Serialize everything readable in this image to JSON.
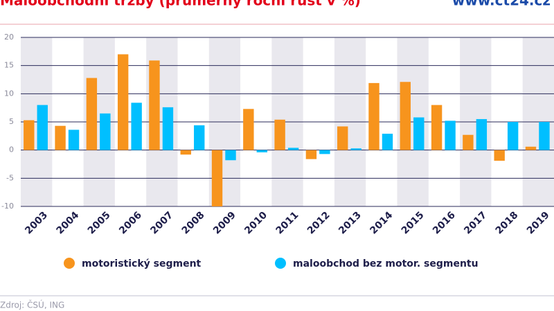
{
  "chart_data": {
    "type": "bar",
    "title": "Maloobchodní tržby (průměrný roční růst v %)",
    "website": "www.ct24.cz",
    "source": "Zdroj: ČSÚ, ING",
    "categories": [
      "2003",
      "2004",
      "2005",
      "2006",
      "2007",
      "2008",
      "2009",
      "2010",
      "2011",
      "2012",
      "2013",
      "2014",
      "2015",
      "2016",
      "2017",
      "2018",
      "2019"
    ],
    "series": [
      {
        "name": "motoristický segment",
        "color": "#f7941d",
        "values": [
          5.3,
          4.3,
          12.8,
          17,
          15.9,
          -0.8,
          -10,
          7.3,
          5.4,
          -1.6,
          4.2,
          11.9,
          12.1,
          8.0,
          2.7,
          -1.9,
          0.6
        ]
      },
      {
        "name": "maloobchod bez motor. segmentu",
        "color": "#00bfff",
        "values": [
          8.0,
          3.6,
          6.5,
          8.4,
          7.6,
          4.4,
          -1.8,
          -0.4,
          0.4,
          -0.7,
          0.3,
          2.9,
          5.8,
          5.2,
          5.5,
          5.0,
          5.0
        ]
      }
    ],
    "ylim": [
      -10,
      20
    ],
    "yticks": [
      -10,
      -5,
      0,
      5,
      10,
      15,
      20
    ],
    "grid": true
  }
}
